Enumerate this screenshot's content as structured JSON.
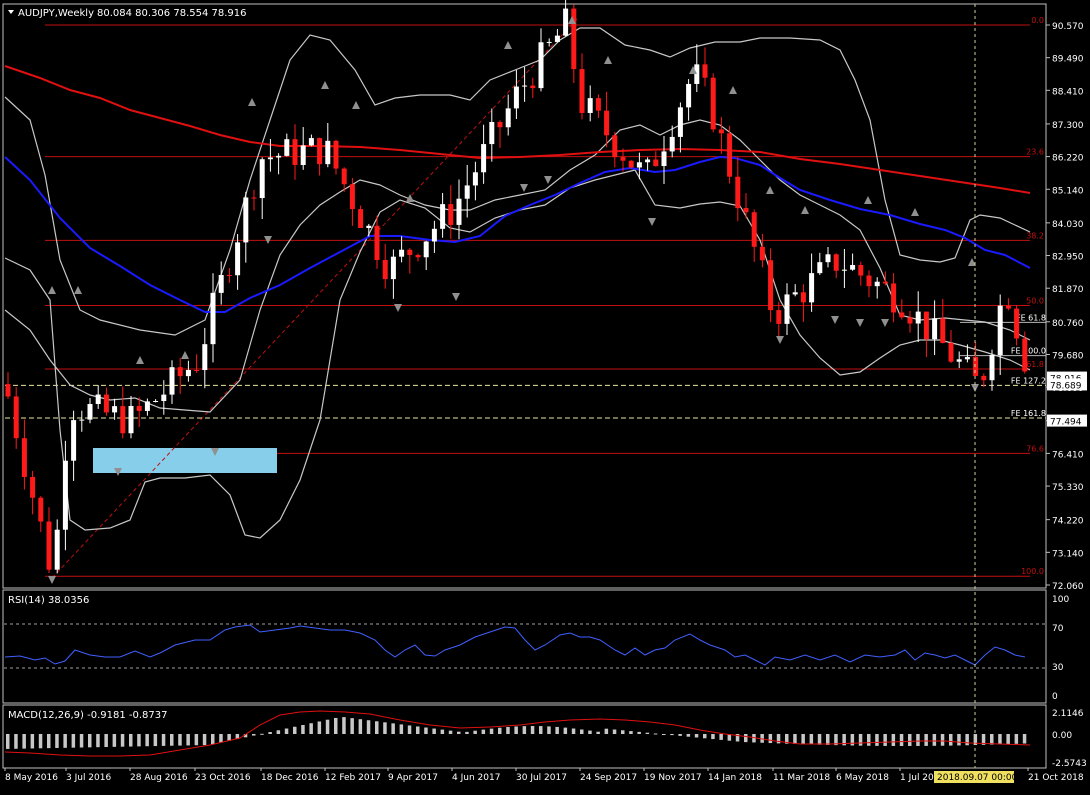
{
  "colors": {
    "background": "#000000",
    "frame": "#c0c0c0",
    "text": "#ffffff",
    "bull": "#ffffff",
    "bear": "#ff1a1a",
    "fib": "#c01010",
    "ma_long": "#e01010",
    "ma_mid": "#1a1aff",
    "bollinger": "#c8c8c8",
    "rsi": "#4060ff",
    "macd_hist": "#c8c8c8",
    "macd_signal": "#e01010",
    "fe_line": "#e8e8a0",
    "zone": "#87ceeb",
    "price_tag_bg": "#ffffff",
    "price_tag_text": "#000000",
    "crosshair": "#d0d0a0",
    "fractal": "#909090"
  },
  "main": {
    "title": "AUDJPY,Weekly",
    "ohlc": "80.084 80.306 78.554 78.916",
    "price_ticks": [
      "90.570",
      "89.490",
      "88.410",
      "87.300",
      "86.220",
      "85.140",
      "84.030",
      "82.950",
      "81.870",
      "80.760",
      "79.680",
      "78.600",
      "77.494",
      "76.410",
      "75.330",
      "74.220",
      "73.140",
      "72.060"
    ]
  },
  "rsi": {
    "label": "RSI(14) 38.0356",
    "ticks": [
      "100",
      "70",
      "30",
      "0"
    ]
  },
  "macd": {
    "label": "MACD(12,26,9) -0.9181 -0.8737",
    "ticks": [
      "2.1146",
      "0.00",
      "-2.5743"
    ]
  },
  "time_axis": {
    "labels": [
      "8 May 2016",
      "3 Jul 2016",
      "28 Aug 2016",
      "23 Oct 2016",
      "18 Dec 2016",
      "12 Feb 2017",
      "9 Apr 2017",
      "4 Jun 2017",
      "30 Jul 2017",
      "24 Sep 2017",
      "19 Nov 2017",
      "14 Jan 2018",
      "11 Mar 2018",
      "6 May 2018",
      "1 Jul 20",
      "21 Oct 2018"
    ],
    "crosshair_label": "2018.09.07 00:00"
  },
  "fib_levels": [
    {
      "label": "0.0",
      "price": 90.57
    },
    {
      "label": "23.6",
      "price": 86.22
    },
    {
      "label": "38.2",
      "price": 83.45
    },
    {
      "label": "50.0",
      "price": 81.3
    },
    {
      "label": "61.8",
      "price": 79.2
    },
    {
      "label": "76.6",
      "price": 76.41
    },
    {
      "label": "100.0",
      "price": 72.35
    }
  ],
  "fe_levels": [
    {
      "label": "FE 61.8",
      "price": 80.74
    },
    {
      "label": "FE 100.0",
      "price": 79.64
    },
    {
      "label": "FE 127.2",
      "price": 78.66
    },
    {
      "label": "FE 161.8",
      "price": 77.58
    }
  ],
  "price_tags": [
    {
      "text": "78.916",
      "price": 78.916
    },
    {
      "text": "78.689",
      "price": 78.689
    },
    {
      "text": "77.494",
      "price": 77.494
    }
  ],
  "chart_data": {
    "type": "candlestick",
    "title": "AUDJPY,Weekly",
    "symbol": "AUDJPY",
    "timeframe": "Weekly",
    "last_bar_ohlc": [
      80.084,
      80.306,
      78.554,
      78.916
    ],
    "ylim": [
      72.06,
      90.93
    ],
    "x_range": [
      "2016-05-08",
      "2018-10-21"
    ],
    "grid": false,
    "key_points": [
      {
        "date": "2016-05-08",
        "close": 78.7
      },
      {
        "date": "2016-06-19",
        "low": 72.35
      },
      {
        "date": "2016-07-03",
        "close": 78.0
      },
      {
        "date": "2016-08-28",
        "close": 77.5
      },
      {
        "date": "2016-10-23",
        "close": 79.5
      },
      {
        "date": "2016-12-18",
        "close": 86.2
      },
      {
        "date": "2017-02-12",
        "close": 86.5
      },
      {
        "date": "2017-04-09",
        "close": 82.5
      },
      {
        "date": "2017-06-04",
        "close": 84.5
      },
      {
        "date": "2017-07-30",
        "close": 88.3
      },
      {
        "date": "2017-09-10",
        "high": 90.57
      },
      {
        "date": "2017-09-24",
        "close": 88.0
      },
      {
        "date": "2017-11-19",
        "close": 85.5
      },
      {
        "date": "2017-12-31",
        "close": 89.0
      },
      {
        "date": "2018-01-14",
        "close": 88.0
      },
      {
        "date": "2018-03-11",
        "close": 81.0
      },
      {
        "date": "2018-05-06",
        "close": 82.8
      },
      {
        "date": "2018-07-01",
        "close": 81.5
      },
      {
        "date": "2018-09-07",
        "low": 78.6
      },
      {
        "date": "2018-09-30",
        "close": 82.0
      },
      {
        "date": "2018-10-21",
        "close": 78.916
      }
    ],
    "indicators": {
      "rsi": {
        "period": 14,
        "last": 38.0356,
        "levels": [
          70,
          30
        ],
        "ylim": [
          0,
          100
        ]
      },
      "macd": {
        "params": [
          12,
          26,
          9
        ],
        "main": -0.9181,
        "signal": -0.8737,
        "ylim": [
          -2.5743,
          2.1146
        ]
      },
      "bollinger_bands": true,
      "moving_averages": [
        {
          "color": "red",
          "role": "long"
        },
        {
          "color": "blue",
          "role": "medium"
        }
      ]
    }
  }
}
